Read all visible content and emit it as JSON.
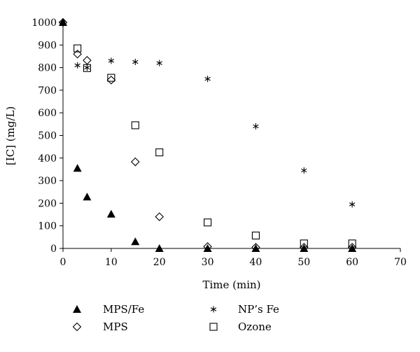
{
  "chart_data": {
    "type": "scatter",
    "xlabel": "Time (min)",
    "ylabel": "[IC] (mg/L)",
    "xlim": [
      0,
      70
    ],
    "ylim": [
      0,
      1000
    ],
    "xticks": [
      0,
      10,
      20,
      30,
      40,
      50,
      60,
      70
    ],
    "yticks": [
      0,
      100,
      200,
      300,
      400,
      500,
      600,
      700,
      800,
      900,
      1000
    ],
    "grid": false,
    "legend_position": "bottom",
    "series": [
      {
        "name": "MPS/Fe",
        "marker": "triangle",
        "x": [
          0,
          3,
          5,
          10,
          15,
          20,
          30,
          40,
          50,
          60
        ],
        "y": [
          1000,
          355,
          228,
          152,
          30,
          0,
          0,
          0,
          0,
          0
        ]
      },
      {
        "name": "NP’s Fe",
        "marker": "asterisk",
        "x": [
          0,
          3,
          5,
          10,
          15,
          20,
          30,
          40,
          50,
          60
        ],
        "y": [
          1000,
          810,
          800,
          830,
          825,
          820,
          750,
          540,
          345,
          195
        ]
      },
      {
        "name": "MPS",
        "marker": "diamond",
        "x": [
          0,
          3,
          5,
          10,
          15,
          20,
          30,
          40,
          50,
          60
        ],
        "y": [
          1000,
          860,
          832,
          745,
          383,
          140,
          8,
          5,
          5,
          5
        ]
      },
      {
        "name": "Ozone",
        "marker": "square",
        "x": [
          3,
          5,
          10,
          15,
          20,
          30,
          40,
          50,
          60
        ],
        "y": [
          885,
          798,
          755,
          545,
          425,
          115,
          57,
          22,
          22
        ]
      }
    ]
  }
}
